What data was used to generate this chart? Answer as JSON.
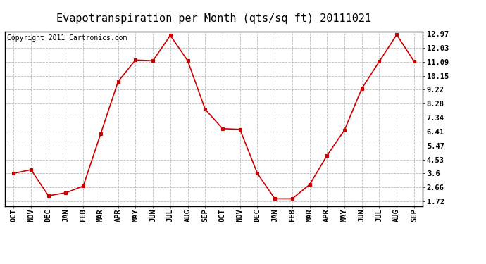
{
  "title": "Evapotranspiration per Month (qts/sq ft) 20111021",
  "copyright_text": "Copyright 2011 Cartronics.com",
  "x_labels": [
    "OCT",
    "NOV",
    "DEC",
    "JAN",
    "FEB",
    "MAR",
    "APR",
    "MAY",
    "JUN",
    "JUL",
    "AUG",
    "SEP",
    "OCT",
    "NOV",
    "DEC",
    "JAN",
    "FEB",
    "MAR",
    "APR",
    "MAY",
    "JUN",
    "JUL",
    "AUG",
    "SEP"
  ],
  "y_values": [
    3.6,
    3.85,
    2.1,
    2.3,
    2.75,
    6.25,
    9.75,
    11.2,
    11.15,
    12.85,
    11.15,
    7.9,
    6.6,
    6.55,
    3.6,
    1.9,
    1.9,
    2.85,
    4.8,
    6.5,
    9.3,
    11.1,
    12.9,
    11.1
  ],
  "line_color": "#cc0000",
  "background_color": "#ffffff",
  "grid_color": "#bbbbbb",
  "y_ticks": [
    1.72,
    2.66,
    3.6,
    4.53,
    5.47,
    6.41,
    7.34,
    8.28,
    9.22,
    10.15,
    11.09,
    12.03,
    12.97
  ],
  "ylim_min": 1.42,
  "ylim_max": 13.1,
  "title_fontsize": 11,
  "copyright_fontsize": 7,
  "tick_fontsize": 7.5
}
